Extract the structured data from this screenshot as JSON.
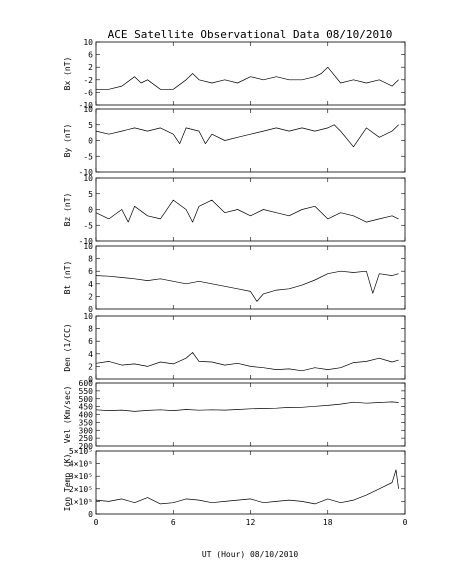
{
  "chart_data": {
    "type": "line",
    "title": "ACE Satellite Observational Data   08/10/2010",
    "xlabel": "UT (Hour)  08/10/2010",
    "xlim": [
      0,
      24
    ],
    "x_ticks": [
      "0",
      "6",
      "12",
      "18",
      "0"
    ],
    "panels": [
      {
        "ylabel": "Bx (nT)",
        "ylim": [
          -10,
          10
        ],
        "y_ticks": [
          "-10",
          "-6",
          "-2",
          "2",
          "6",
          "10"
        ],
        "series": [
          {
            "x": [
              0,
              1,
              2,
              3,
              3.5,
              4,
              5,
              6,
              7,
              7.5,
              8,
              9,
              10,
              11,
              12,
              13,
              14,
              15,
              16,
              17,
              17.5,
              18,
              19,
              20,
              21,
              22,
              23,
              23.5
            ],
            "y": [
              -5,
              -5,
              -4,
              -1,
              -3,
              -2,
              -5,
              -5,
              -2,
              0,
              -2,
              -3,
              -2,
              -3,
              -1,
              -2,
              -1,
              -2,
              -2,
              -1,
              0,
              2,
              -3,
              -2,
              -3,
              -2,
              -4,
              -2
            ]
          }
        ]
      },
      {
        "ylabel": "By (nT)",
        "ylim": [
          -10,
          10
        ],
        "y_ticks": [
          "-10",
          "-5",
          "0",
          "5",
          "10"
        ],
        "series": [
          {
            "x": [
              0,
              1,
              2,
              3,
              4,
              5,
              6,
              6.5,
              7,
              8,
              8.5,
              9,
              10,
              11,
              12,
              13,
              14,
              15,
              16,
              17,
              18,
              18.5,
              19,
              20,
              21,
              22,
              23,
              23.5
            ],
            "y": [
              3,
              2,
              3,
              4,
              3,
              4,
              2,
              -1,
              4,
              3,
              -1,
              2,
              0,
              1,
              2,
              3,
              4,
              3,
              4,
              3,
              4,
              5,
              3,
              -2,
              4,
              1,
              3,
              5
            ]
          }
        ]
      },
      {
        "ylabel": "Bz (nT)",
        "ylim": [
          -10,
          10
        ],
        "y_ticks": [
          "-10",
          "-5",
          "0",
          "5",
          "10"
        ],
        "series": [
          {
            "x": [
              0,
              1,
              2,
              2.5,
              3,
              4,
              5,
              6,
              7,
              7.5,
              8,
              9,
              10,
              11,
              12,
              13,
              14,
              15,
              16,
              17,
              18,
              19,
              20,
              21,
              22,
              23,
              23.5
            ],
            "y": [
              -1,
              -3,
              0,
              -4,
              1,
              -2,
              -3,
              3,
              0,
              -4,
              1,
              3,
              -1,
              0,
              -2,
              0,
              -1,
              -2,
              0,
              1,
              -3,
              -1,
              -2,
              -4,
              -3,
              -2,
              -3
            ]
          }
        ]
      },
      {
        "ylabel": "Bt (nT)",
        "ylim": [
          0,
          10
        ],
        "y_ticks": [
          "0",
          "2",
          "4",
          "6",
          "8",
          "10"
        ],
        "series": [
          {
            "x": [
              0,
              1,
              2,
              3,
              4,
              5,
              6,
              7,
              8,
              9,
              10,
              11,
              12,
              12.5,
              13,
              14,
              15,
              16,
              17,
              18,
              19,
              20,
              21,
              21.5,
              22,
              23,
              23.5
            ],
            "y": [
              5.3,
              5.2,
              5.0,
              4.8,
              4.5,
              4.8,
              4.4,
              4.0,
              4.4,
              4.0,
              3.6,
              3.2,
              2.8,
              1.2,
              2.4,
              3.0,
              3.2,
              3.8,
              4.6,
              5.6,
              6.0,
              5.8,
              6.0,
              2.5,
              5.6,
              5.3,
              5.6
            ]
          }
        ]
      },
      {
        "ylabel": "Den (1/CC)",
        "ylim": [
          0,
          10
        ],
        "y_ticks": [
          "0",
          "2",
          "4",
          "6",
          "8",
          "10"
        ],
        "series": [
          {
            "x": [
              0,
              1,
              2,
              3,
              4,
              5,
              6,
              7,
              7.5,
              8,
              9,
              10,
              11,
              12,
              13,
              14,
              15,
              16,
              17,
              18,
              19,
              20,
              21,
              22,
              23,
              23.5
            ],
            "y": [
              2.5,
              2.8,
              2.2,
              2.4,
              2.0,
              2.7,
              2.4,
              3.3,
              4.2,
              2.8,
              2.7,
              2.2,
              2.5,
              2.0,
              1.8,
              1.5,
              1.6,
              1.3,
              1.8,
              1.5,
              1.8,
              2.6,
              2.8,
              3.3,
              2.7,
              3.0
            ]
          }
        ]
      },
      {
        "ylabel": "Vel (Km/sec)",
        "ylim": [
          200,
          600
        ],
        "y_ticks": [
          "200",
          "250",
          "300",
          "350",
          "400",
          "450",
          "500",
          "550",
          "600"
        ],
        "series": [
          {
            "x": [
              0,
              1,
              2,
              3,
              4,
              5,
              6,
              7,
              8,
              9,
              10,
              11,
              12,
              13,
              14,
              15,
              16,
              17,
              18,
              19,
              20,
              21,
              22,
              23,
              23.5
            ],
            "y": [
              430,
              425,
              428,
              420,
              426,
              430,
              425,
              432,
              427,
              430,
              428,
              432,
              436,
              438,
              440,
              445,
              446,
              452,
              458,
              466,
              478,
              472,
              476,
              480,
              476
            ]
          }
        ]
      },
      {
        "ylabel": "Ion Temp (K)",
        "ylim": [
          0,
          500000
        ],
        "y_ticks": [
          "0",
          "1×10⁵",
          "2×10⁵",
          "3×10⁵",
          "4×10⁵",
          "5×10⁵"
        ],
        "series": [
          {
            "x": [
              0,
              1,
              2,
              3,
              4,
              5,
              6,
              7,
              8,
              9,
              10,
              11,
              12,
              13,
              14,
              15,
              16,
              17,
              18,
              19,
              20,
              21,
              22,
              23,
              23.3,
              23.5
            ],
            "y": [
              110000,
              100000,
              120000,
              90000,
              130000,
              80000,
              90000,
              120000,
              110000,
              90000,
              100000,
              110000,
              120000,
              90000,
              100000,
              110000,
              100000,
              80000,
              120000,
              90000,
              110000,
              150000,
              200000,
              250000,
              350000,
              200000
            ]
          }
        ]
      }
    ]
  }
}
